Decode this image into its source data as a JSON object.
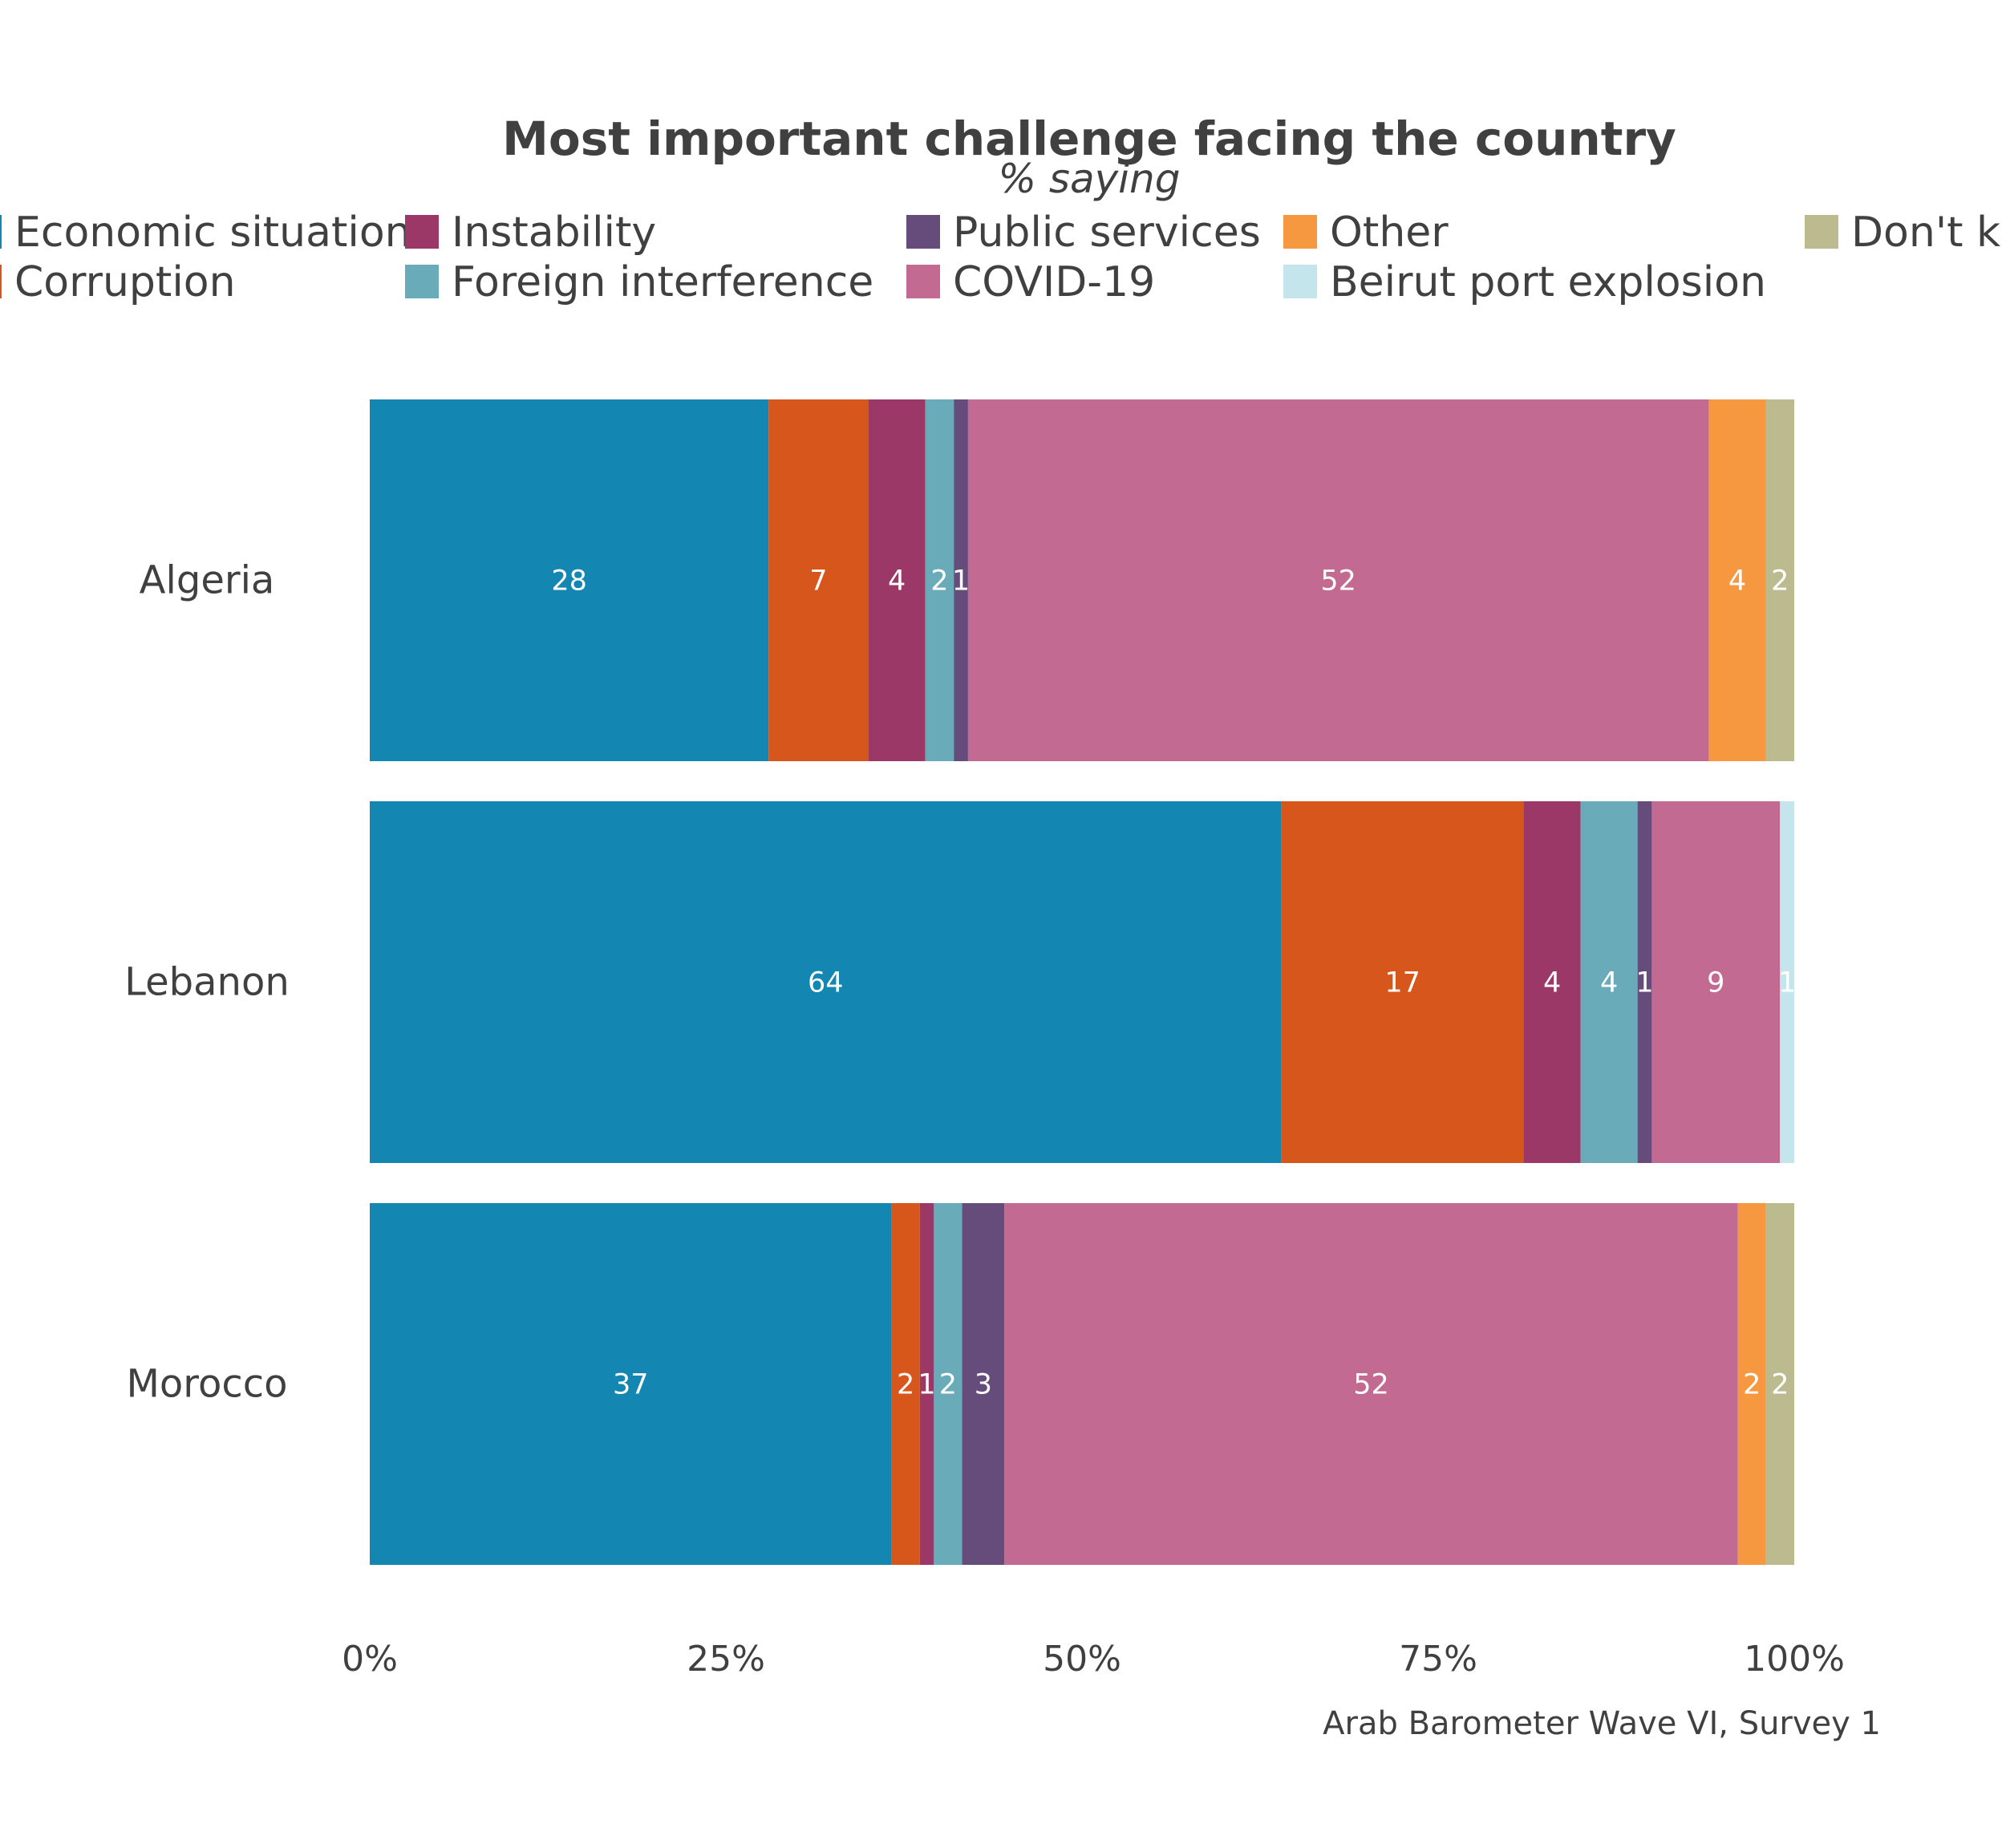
{
  "chart_data": {
    "type": "bar",
    "orientation": "horizontal",
    "stacked": "percent",
    "title": "Most important challenge facing the country",
    "subtitle": "% saying",
    "caption": "Arab Barometer Wave VI, Survey 1",
    "categories": [
      "Algeria",
      "Lebanon",
      "Morocco"
    ],
    "series": [
      {
        "name": "Economic situation",
        "color": "#1386B2",
        "values": [
          28,
          64,
          37
        ]
      },
      {
        "name": "Corruption",
        "color": "#D6561B",
        "values": [
          7,
          17,
          2
        ]
      },
      {
        "name": "Instability",
        "color": "#9B3867",
        "values": [
          4,
          4,
          1
        ]
      },
      {
        "name": "Foreign interference",
        "color": "#6AABB9",
        "values": [
          2,
          4,
          2
        ]
      },
      {
        "name": "Public services",
        "color": "#654C7B",
        "values": [
          1,
          1,
          3
        ]
      },
      {
        "name": "COVID-19",
        "color": "#C26A91",
        "values": [
          52,
          9,
          52
        ]
      },
      {
        "name": "Other",
        "color": "#F69840",
        "values": [
          4,
          0,
          2
        ]
      },
      {
        "name": "Beirut port explosion",
        "color": "#C5E5ED",
        "values": [
          0,
          1,
          0
        ]
      },
      {
        "name": "Don't know",
        "color": "#BCBB90",
        "values": [
          2,
          0,
          2
        ]
      }
    ],
    "legend_display": [
      "Economic situation",
      "Instability",
      "Public services",
      "Other",
      "Don't know",
      "Corruption",
      "Foreign interference",
      "COVID-19",
      "Beirut port explosion"
    ],
    "xlim": [
      0,
      100
    ],
    "xticks": [
      "0%",
      "25%",
      "50%",
      "75%",
      "100%"
    ],
    "legend_position": "top",
    "grid": false
  }
}
